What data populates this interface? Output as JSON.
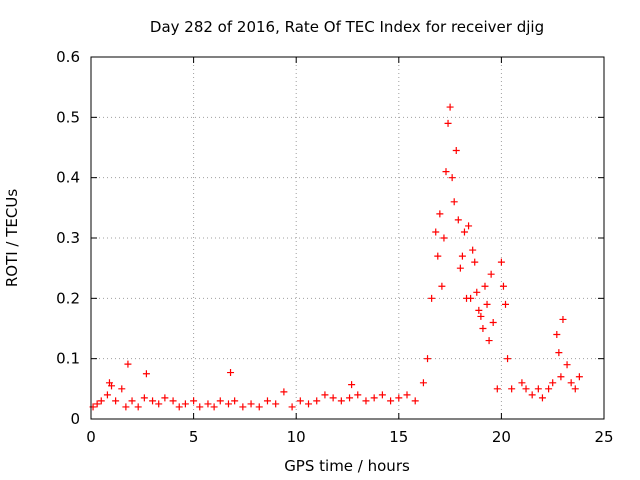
{
  "chart_data": {
    "type": "scatter",
    "title": "Day 282 of 2016, Rate Of TEC Index for receiver djig",
    "xlabel": "GPS time / hours",
    "ylabel": "ROTI / TECUs",
    "xlim": [
      0,
      25
    ],
    "ylim": [
      0,
      0.6
    ],
    "xticks": [
      0,
      5,
      10,
      15,
      20,
      25
    ],
    "yticks": [
      0,
      0.1,
      0.2,
      0.3,
      0.4,
      0.5,
      0.6
    ],
    "ytick_labels": [
      "0",
      "0.1",
      "0.2",
      "0.3",
      "0.4",
      "0.5",
      "0.6"
    ],
    "grid": true,
    "marker": "+",
    "color": "#ff0000",
    "series": [
      {
        "name": "ROTI",
        "x": [
          0.1,
          0.3,
          0.5,
          0.8,
          0.9,
          1.0,
          1.2,
          1.5,
          1.7,
          1.8,
          2.0,
          2.3,
          2.6,
          2.7,
          3.0,
          3.3,
          3.6,
          4.0,
          4.3,
          4.6,
          5.0,
          5.3,
          5.7,
          6.0,
          6.3,
          6.7,
          6.8,
          7.0,
          7.4,
          7.8,
          8.2,
          8.6,
          9.0,
          9.4,
          9.8,
          10.2,
          10.6,
          11.0,
          11.4,
          11.8,
          12.2,
          12.6,
          12.7,
          13.0,
          13.4,
          13.8,
          14.2,
          14.6,
          15.0,
          15.4,
          15.8,
          16.2,
          16.4,
          16.6,
          16.8,
          16.9,
          17.0,
          17.1,
          17.2,
          17.3,
          17.4,
          17.5,
          17.6,
          17.7,
          17.8,
          17.9,
          18.0,
          18.1,
          18.2,
          18.3,
          18.4,
          18.5,
          18.6,
          18.7,
          18.8,
          18.9,
          19.0,
          19.1,
          19.2,
          19.3,
          19.4,
          19.5,
          19.6,
          19.8,
          20.0,
          20.1,
          20.2,
          20.3,
          20.5,
          21.0,
          21.2,
          21.5,
          21.8,
          22.0,
          22.3,
          22.5,
          22.7,
          22.8,
          22.9,
          23.0,
          23.2,
          23.4,
          23.6,
          23.8
        ],
        "values": [
          0.02,
          0.025,
          0.03,
          0.04,
          0.06,
          0.055,
          0.03,
          0.05,
          0.02,
          0.091,
          0.03,
          0.02,
          0.035,
          0.075,
          0.03,
          0.025,
          0.035,
          0.03,
          0.02,
          0.025,
          0.03,
          0.02,
          0.025,
          0.02,
          0.03,
          0.025,
          0.077,
          0.03,
          0.02,
          0.025,
          0.02,
          0.03,
          0.025,
          0.045,
          0.02,
          0.03,
          0.025,
          0.03,
          0.04,
          0.035,
          0.03,
          0.035,
          0.057,
          0.04,
          0.03,
          0.035,
          0.04,
          0.03,
          0.035,
          0.04,
          0.03,
          0.06,
          0.1,
          0.2,
          0.31,
          0.27,
          0.34,
          0.22,
          0.3,
          0.41,
          0.49,
          0.517,
          0.4,
          0.36,
          0.445,
          0.33,
          0.25,
          0.27,
          0.31,
          0.2,
          0.32,
          0.2,
          0.28,
          0.26,
          0.21,
          0.18,
          0.17,
          0.15,
          0.22,
          0.19,
          0.13,
          0.24,
          0.16,
          0.05,
          0.26,
          0.22,
          0.19,
          0.1,
          0.05,
          0.06,
          0.05,
          0.04,
          0.05,
          0.035,
          0.05,
          0.06,
          0.14,
          0.11,
          0.07,
          0.165,
          0.09,
          0.06,
          0.05,
          0.07
        ]
      }
    ]
  }
}
